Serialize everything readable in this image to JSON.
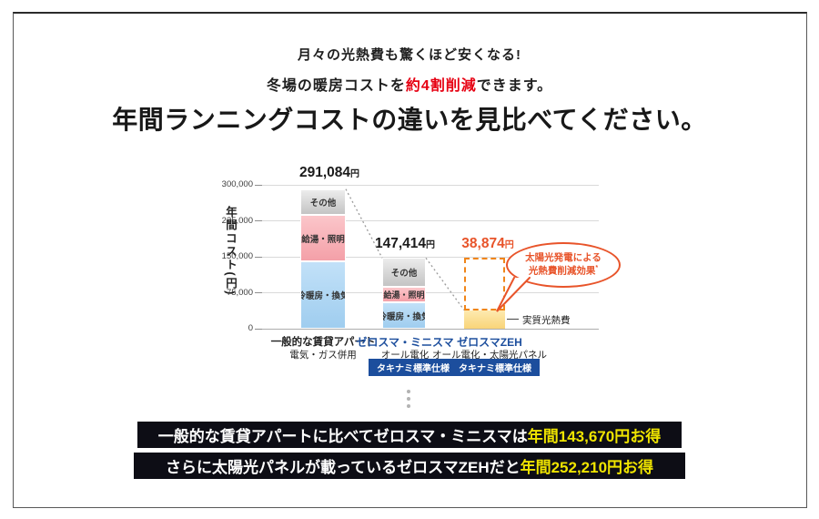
{
  "header": {
    "line1": "月々の光熱費も驚くほど安くなる!",
    "line2_pre": "冬場の暖房コストを",
    "line2_em": "約4割削減",
    "line2_post": "できます。",
    "title": "年間ランニングコストの違いを見比べてください。"
  },
  "chart_data": {
    "type": "bar",
    "stacked": true,
    "ylabel": "年間コスト(円)",
    "ylim": [
      0,
      300000
    ],
    "ytick_values": [
      300000,
      225000,
      150000,
      75000,
      0
    ],
    "ytick_labels": [
      "300,000",
      "225,000",
      "150,000",
      "75,000",
      "0"
    ],
    "grid": true,
    "unit": "円",
    "bars": [
      {
        "category_line1": "一般的な賃貸アパート",
        "category_line2": "電気・ガス併用",
        "total": 291084,
        "total_label": "291,084",
        "total_unit": "円",
        "segments": [
          {
            "label": "冷暖房・換気",
            "value": 140000,
            "color_key": "blue"
          },
          {
            "label": "給湯・照明",
            "value": 97000,
            "color_key": "pink"
          },
          {
            "label": "その他",
            "value": 54084,
            "color_key": "gray"
          }
        ]
      },
      {
        "category_line1": "ゼロスマ・ミニスマ",
        "category_line2": "オール電化",
        "badge": "タキナミ標準仕様",
        "total": 147414,
        "total_label": "147,414",
        "total_unit": "円",
        "segments": [
          {
            "label": "冷暖房・換気",
            "value": 55000,
            "color_key": "blue"
          },
          {
            "label": "給湯・照明",
            "value": 32000,
            "color_key": "pink"
          },
          {
            "label": "その他",
            "value": 60414,
            "color_key": "gray"
          }
        ]
      },
      {
        "category_line1": "ゼロスマZEH",
        "category_line2": "オール電化・太陽光パネル",
        "badge": "タキナミ標準仕様",
        "total": 38874,
        "total_label": "38,874",
        "total_unit": "円",
        "actual_cost_label": "実質光熱費",
        "annotation_line1": "太陽光発電による",
        "annotation_line2": "光熱費削減効果",
        "annotation_mark": "*",
        "reduction_box": {
          "from": 147414,
          "to": 38874
        },
        "segments": [
          {
            "label": "実質光熱費",
            "value": 38874,
            "color_key": "yellow"
          }
        ]
      }
    ]
  },
  "banners": [
    {
      "text_white": "一般的な賃貸アパートに比べてゼロスマ・ミニスマは",
      "text_yellow": "年間143,670円お得"
    },
    {
      "text_white": "さらに太陽光パネルが載っているゼロスマZEHだと",
      "text_yellow": "年間252,210円お得"
    }
  ],
  "colors": {
    "accent_red": "#e60012",
    "bar_blue": "#a9d4f1",
    "bar_pink": "#f5a2a9",
    "bar_gray": "#cfcfcf",
    "bar_yellow": "#f9d478",
    "dashed_box_orange": "#f08519",
    "annotation_red": "#e8542a",
    "brand_blue": "#1c4e9d",
    "banner_bg": "#0d0d15",
    "banner_yellow": "#efe400"
  }
}
